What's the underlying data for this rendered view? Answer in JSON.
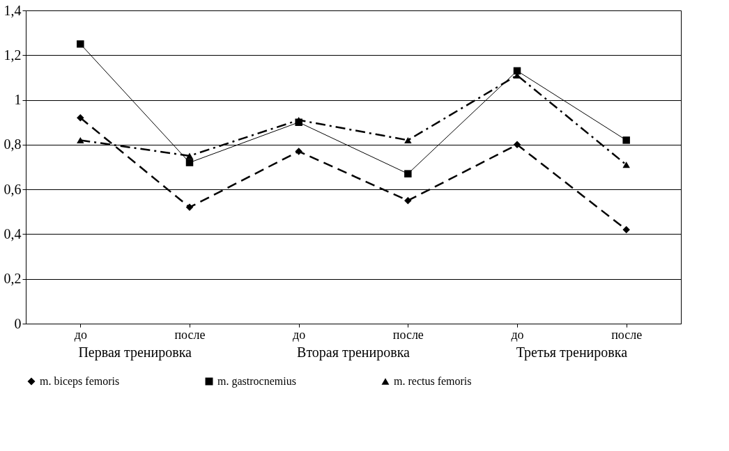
{
  "chart_data": {
    "type": "line",
    "categories": [
      "до",
      "после",
      "до",
      "после",
      "до",
      "после"
    ],
    "series": [
      {
        "name": "m. biceps femoris",
        "color": "#000000",
        "marker": "diamond",
        "line_style": "dashed",
        "values": [
          0.92,
          0.52,
          0.77,
          0.55,
          0.8,
          0.42
        ]
      },
      {
        "name": "m. gastrocnemius",
        "color": "#000000",
        "marker": "square",
        "line_style": "solid",
        "values": [
          1.25,
          0.72,
          0.9,
          0.67,
          1.13,
          0.82
        ]
      },
      {
        "name": "m. rectus femoris",
        "color": "#000000",
        "marker": "triangle",
        "line_style": "dashdot",
        "values": [
          0.82,
          0.75,
          0.91,
          0.82,
          1.11,
          0.71
        ]
      }
    ],
    "annotations": [
      "Первая тренировка",
      "Вторая тренировка",
      "Третья тренировка"
    ],
    "ylim": [
      0,
      1.4
    ],
    "yticks": [
      {
        "value": 0,
        "label": "0"
      },
      {
        "value": 0.2,
        "label": "0,2"
      },
      {
        "value": 0.4,
        "label": "0,4"
      },
      {
        "value": 0.6,
        "label": "0,6"
      },
      {
        "value": 0.8,
        "label": "0,8"
      },
      {
        "value": 1,
        "label": "1"
      },
      {
        "value": 1.2,
        "label": "1,2"
      },
      {
        "value": 1.4,
        "label": "1,4"
      }
    ],
    "grid": "y",
    "legend": "bottom"
  }
}
